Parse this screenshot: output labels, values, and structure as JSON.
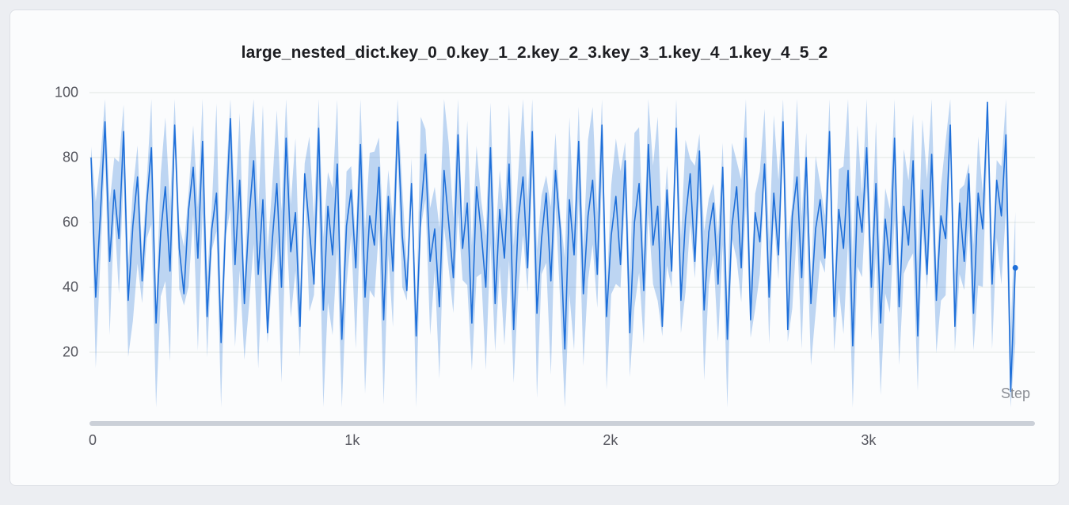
{
  "chart_data": {
    "type": "line",
    "title": "large_nested_dict.key_0_0.key_1_2.key_2_3.key_3_1.key_4_1.key_4_5_2",
    "xlabel": "Step",
    "ylabel": "",
    "xlim": [
      0,
      3650
    ],
    "ylim": [
      0,
      100
    ],
    "x_ticks": [
      {
        "value": 0,
        "label": "0"
      },
      {
        "value": 1000,
        "label": "1k"
      },
      {
        "value": 2000,
        "label": "2k"
      },
      {
        "value": 3000,
        "label": "3k"
      }
    ],
    "y_ticks": [
      100,
      80,
      60,
      40,
      20
    ],
    "grid": "horizontal",
    "legend": "none",
    "colors": {
      "line": "#1e6fd9",
      "band": "#1e6fd9",
      "band_opacity": 0.28,
      "grid": "#e2e6e2"
    },
    "band": {
      "type": "min-max-envelope",
      "seed": 7,
      "spread_min": 3,
      "spread_max": 30,
      "clip": [
        3,
        98
      ]
    },
    "series": [
      {
        "name": "large_nested_dict.key_0_0.key_1_2.key_2_3.key_3_1.key_4_1.key_4_5_2",
        "x_max": 3580,
        "values": [
          80,
          37,
          62,
          91,
          48,
          70,
          55,
          88,
          36,
          59,
          74,
          42,
          66,
          83,
          29,
          57,
          71,
          45,
          90,
          52,
          38,
          64,
          77,
          49,
          85,
          31,
          58,
          69,
          23,
          60,
          92,
          47,
          73,
          35,
          61,
          79,
          44,
          67,
          26,
          54,
          72,
          40,
          86,
          51,
          63,
          28,
          75,
          58,
          41,
          89,
          33,
          65,
          50,
          78,
          24,
          59,
          70,
          46,
          84,
          37,
          62,
          53,
          77,
          30,
          68,
          45,
          91,
          56,
          39,
          72,
          25,
          63,
          81,
          48,
          58,
          34,
          76,
          60,
          43,
          87,
          52,
          66,
          29,
          71,
          57,
          40,
          83,
          35,
          64,
          49,
          78,
          27,
          61,
          74,
          46,
          88,
          32,
          55,
          69,
          42,
          76,
          58,
          21,
          67,
          50,
          85,
          38,
          62,
          73,
          44,
          90,
          31,
          56,
          68,
          47,
          79,
          26,
          60,
          72,
          39,
          84,
          53,
          65,
          28,
          70,
          45,
          89,
          36,
          61,
          75,
          48,
          82,
          33,
          57,
          66,
          41,
          77,
          24,
          59,
          71,
          46,
          86,
          30,
          63,
          54,
          78,
          37,
          69,
          50,
          91,
          27,
          62,
          74,
          43,
          80,
          35,
          58,
          67,
          49,
          88,
          31,
          64,
          52,
          76,
          22,
          68,
          57,
          83,
          40,
          72,
          29,
          61,
          47,
          86,
          34,
          65,
          53,
          79,
          25,
          70,
          44,
          81,
          36,
          62,
          55,
          90,
          28,
          66,
          48,
          75,
          32,
          69,
          58,
          97,
          41,
          73,
          62,
          87,
          8,
          46
        ]
      }
    ]
  }
}
